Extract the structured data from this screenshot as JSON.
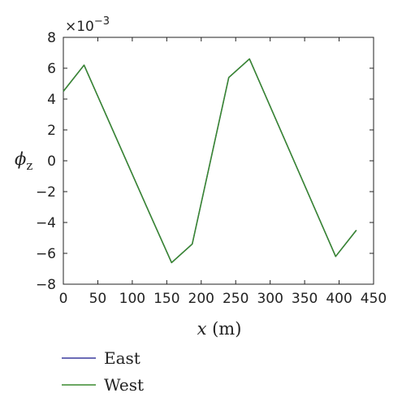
{
  "chart_data": {
    "type": "line",
    "xlabel_var": "x",
    "xlabel_unit": "(m)",
    "ylabel_base": "ϕ",
    "ylabel_sub": "z",
    "y_multiplier_base": "×10",
    "y_multiplier_exp": "−3",
    "xlim": [
      0,
      450
    ],
    "ylim": [
      -8,
      8
    ],
    "x_ticks": [
      0,
      50,
      100,
      150,
      200,
      250,
      300,
      350,
      400,
      450
    ],
    "y_ticks": [
      -8,
      -6,
      -4,
      -2,
      0,
      2,
      4,
      6,
      8
    ],
    "x_tick_labels": [
      "0",
      "50",
      "100",
      "150",
      "200",
      "250",
      "300",
      "350",
      "400",
      "450"
    ],
    "y_tick_labels": [
      "−8",
      "−6",
      "−4",
      "−2",
      "0",
      "2",
      "4",
      "6",
      "8"
    ],
    "grid": false,
    "legend_position": "below",
    "series": [
      {
        "name": "East",
        "color": "#3a3a9e",
        "x": [
          0,
          30,
          125,
          157,
          187,
          240,
          270,
          395,
          425
        ],
        "y": [
          4.5,
          6.2,
          -3.4,
          -6.6,
          -5.4,
          5.4,
          6.6,
          -6.2,
          -4.5
        ]
      },
      {
        "name": "West",
        "color": "#3a8a2e",
        "x": [
          0,
          30,
          125,
          157,
          187,
          240,
          270,
          395,
          425
        ],
        "y": [
          4.5,
          6.2,
          -3.4,
          -6.6,
          -5.4,
          5.4,
          6.6,
          -6.2,
          -4.5
        ]
      }
    ]
  }
}
